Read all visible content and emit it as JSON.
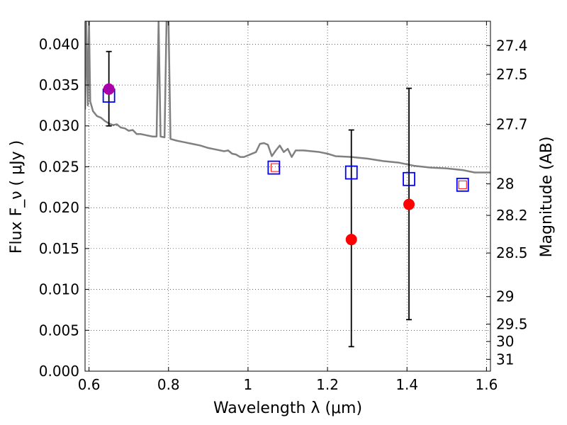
{
  "chart_data": {
    "type": "scatter",
    "xlabel": "Wavelength  λ (μm)",
    "ylabel": "Flux  F_ν  ( μJy )",
    "y2label": "Magnitude (AB)",
    "xlim": [
      0.59,
      1.61
    ],
    "ylim": [
      0.0,
      0.0428
    ],
    "grid": true,
    "x_ticks": [
      {
        "value": 0.6,
        "label": "0.6"
      },
      {
        "value": 0.8,
        "label": "0.8"
      },
      {
        "value": 1.0,
        "label": "1"
      },
      {
        "value": 1.2,
        "label": "1.2"
      },
      {
        "value": 1.4,
        "label": "1.4"
      },
      {
        "value": 1.6,
        "label": "1.6"
      }
    ],
    "y_ticks": [
      {
        "value": 0.0,
        "label": "0.000"
      },
      {
        "value": 0.005,
        "label": "0.005"
      },
      {
        "value": 0.01,
        "label": "0.010"
      },
      {
        "value": 0.015,
        "label": "0.015"
      },
      {
        "value": 0.02,
        "label": "0.020"
      },
      {
        "value": 0.025,
        "label": "0.025"
      },
      {
        "value": 0.03,
        "label": "0.030"
      },
      {
        "value": 0.035,
        "label": "0.035"
      },
      {
        "value": 0.04,
        "label": "0.040"
      }
    ],
    "y2_ticks": [
      {
        "mag": 27.4,
        "label": "27.4"
      },
      {
        "mag": 27.5,
        "label": "27.5"
      },
      {
        "mag": 27.7,
        "label": "27.7"
      },
      {
        "mag": 28.0,
        "label": "28"
      },
      {
        "mag": 28.2,
        "label": "28.2"
      },
      {
        "mag": 28.5,
        "label": "28.5"
      },
      {
        "mag": 29.0,
        "label": "29"
      },
      {
        "mag": 29.5,
        "label": "29.5"
      },
      {
        "mag": 30.0,
        "label": "30"
      },
      {
        "mag": 31.0,
        "label": "31"
      }
    ],
    "sed_model": {
      "color": "#808080",
      "points": [
        [
          0.59,
          0.032
        ],
        [
          0.593,
          0.0428
        ],
        [
          0.597,
          0.0325
        ],
        [
          0.6,
          0.0428
        ],
        [
          0.603,
          0.033
        ],
        [
          0.61,
          0.0318
        ],
        [
          0.62,
          0.0312
        ],
        [
          0.63,
          0.031
        ],
        [
          0.64,
          0.0306
        ],
        [
          0.65,
          0.0303
        ],
        [
          0.66,
          0.0301
        ],
        [
          0.67,
          0.0302
        ],
        [
          0.68,
          0.0298
        ],
        [
          0.69,
          0.0297
        ],
        [
          0.7,
          0.0294
        ],
        [
          0.71,
          0.0295
        ],
        [
          0.72,
          0.029
        ],
        [
          0.73,
          0.029
        ],
        [
          0.74,
          0.0289
        ],
        [
          0.75,
          0.0288
        ],
        [
          0.76,
          0.0287
        ],
        [
          0.77,
          0.0287
        ],
        [
          0.775,
          0.0428
        ],
        [
          0.78,
          0.0287
        ],
        [
          0.79,
          0.0286
        ],
        [
          0.795,
          0.0428
        ],
        [
          0.8,
          0.0428
        ],
        [
          0.805,
          0.0284
        ],
        [
          0.82,
          0.0282
        ],
        [
          0.84,
          0.028
        ],
        [
          0.86,
          0.0278
        ],
        [
          0.88,
          0.0276
        ],
        [
          0.9,
          0.0273
        ],
        [
          0.92,
          0.0271
        ],
        [
          0.94,
          0.0269
        ],
        [
          0.95,
          0.027
        ],
        [
          0.96,
          0.0266
        ],
        [
          0.97,
          0.0265
        ],
        [
          0.98,
          0.0262
        ],
        [
          0.99,
          0.0262
        ],
        [
          1.0,
          0.0264
        ],
        [
          1.02,
          0.0268
        ],
        [
          1.03,
          0.0278
        ],
        [
          1.04,
          0.0279
        ],
        [
          1.05,
          0.0277
        ],
        [
          1.06,
          0.0263
        ],
        [
          1.07,
          0.027
        ],
        [
          1.08,
          0.0276
        ],
        [
          1.09,
          0.0268
        ],
        [
          1.1,
          0.0272
        ],
        [
          1.11,
          0.0262
        ],
        [
          1.12,
          0.027
        ],
        [
          1.14,
          0.027
        ],
        [
          1.16,
          0.0269
        ],
        [
          1.18,
          0.0268
        ],
        [
          1.2,
          0.0266
        ],
        [
          1.22,
          0.0263
        ],
        [
          1.26,
          0.0262
        ],
        [
          1.3,
          0.026
        ],
        [
          1.34,
          0.0257
        ],
        [
          1.38,
          0.0255
        ],
        [
          1.42,
          0.0251
        ],
        [
          1.46,
          0.0249
        ],
        [
          1.5,
          0.0248
        ],
        [
          1.54,
          0.0246
        ],
        [
          1.57,
          0.0243
        ],
        [
          1.61,
          0.0243
        ]
      ]
    },
    "model_photometry": {
      "marker": "open-square",
      "color": "#0000ff",
      "points": [
        {
          "x": 0.65,
          "y": 0.0337
        },
        {
          "x": 1.065,
          "y": 0.0249
        },
        {
          "x": 1.26,
          "y": 0.0243
        },
        {
          "x": 1.405,
          "y": 0.0235
        },
        {
          "x": 1.54,
          "y": 0.0228
        }
      ]
    },
    "upper_limits": {
      "marker": "open-square",
      "color": "#ff0000",
      "points": [
        {
          "x": 1.068,
          "y": 0.0249
        },
        {
          "x": 1.54,
          "y": 0.0228
        }
      ]
    },
    "detections": {
      "marker": "filled-circle",
      "points": [
        {
          "x": 0.65,
          "y": 0.0345,
          "err_low": 0.03,
          "err_high": 0.0391,
          "color": "#aa00aa"
        },
        {
          "x": 1.26,
          "y": 0.0161,
          "err_low": 0.003,
          "err_high": 0.0295,
          "color": "#ff0000"
        },
        {
          "x": 1.405,
          "y": 0.0204,
          "err_low": 0.0063,
          "err_high": 0.0346,
          "color": "#ff0000"
        }
      ]
    }
  }
}
